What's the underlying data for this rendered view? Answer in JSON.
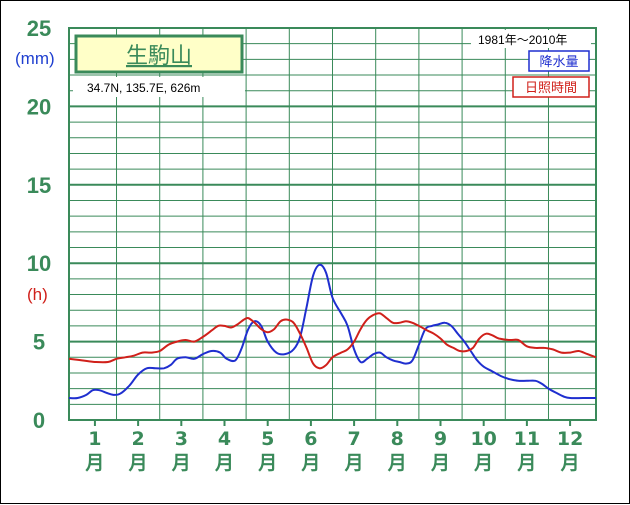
{
  "chart_data": {
    "type": "line",
    "title": "生駒山",
    "location": "34.7N, 135.7E, 626m",
    "period": "1981年～2010年",
    "legend": [
      {
        "name": "降水量",
        "color": "#1f2fcf"
      },
      {
        "name": "日照時間",
        "color": "#d0201a"
      }
    ],
    "y_units": {
      "precipitation": "(mm)",
      "sunshine": "(h)"
    },
    "y_ticks": [
      "0",
      "5",
      "10",
      "15",
      "20",
      "25"
    ],
    "ylim": [
      0,
      25
    ],
    "x_range": [
      0.4,
      12.6
    ],
    "months": [
      {
        "num": "1",
        "unit": "月"
      },
      {
        "num": "2",
        "unit": "月"
      },
      {
        "num": "3",
        "unit": "月"
      },
      {
        "num": "4",
        "unit": "月"
      },
      {
        "num": "5",
        "unit": "月"
      },
      {
        "num": "6",
        "unit": "月"
      },
      {
        "num": "7",
        "unit": "月"
      },
      {
        "num": "8",
        "unit": "月"
      },
      {
        "num": "9",
        "unit": "月"
      },
      {
        "num": "10",
        "unit": "月"
      },
      {
        "num": "11",
        "unit": "月"
      },
      {
        "num": "12",
        "unit": "月"
      }
    ],
    "series": [
      {
        "name": "降水量",
        "color": "#1f2fcf",
        "points": [
          [
            0.4,
            1.4
          ],
          [
            0.6,
            1.4
          ],
          [
            0.8,
            1.6
          ],
          [
            0.95,
            1.9
          ],
          [
            1.1,
            1.9
          ],
          [
            1.3,
            1.7
          ],
          [
            1.45,
            1.6
          ],
          [
            1.6,
            1.7
          ],
          [
            1.8,
            2.2
          ],
          [
            2.0,
            2.9
          ],
          [
            2.2,
            3.3
          ],
          [
            2.4,
            3.3
          ],
          [
            2.6,
            3.3
          ],
          [
            2.75,
            3.5
          ],
          [
            2.9,
            3.9
          ],
          [
            3.1,
            4.0
          ],
          [
            3.3,
            3.9
          ],
          [
            3.5,
            4.2
          ],
          [
            3.7,
            4.4
          ],
          [
            3.9,
            4.3
          ],
          [
            4.05,
            3.9
          ],
          [
            4.25,
            3.8
          ],
          [
            4.4,
            4.6
          ],
          [
            4.55,
            5.8
          ],
          [
            4.7,
            6.3
          ],
          [
            4.85,
            6.0
          ],
          [
            5.0,
            5.0
          ],
          [
            5.2,
            4.3
          ],
          [
            5.4,
            4.2
          ],
          [
            5.6,
            4.5
          ],
          [
            5.75,
            5.3
          ],
          [
            5.9,
            7.2
          ],
          [
            6.05,
            9.2
          ],
          [
            6.2,
            9.9
          ],
          [
            6.35,
            9.4
          ],
          [
            6.5,
            7.8
          ],
          [
            6.7,
            6.8
          ],
          [
            6.85,
            6.0
          ],
          [
            7.0,
            4.5
          ],
          [
            7.15,
            3.7
          ],
          [
            7.3,
            3.9
          ],
          [
            7.45,
            4.2
          ],
          [
            7.6,
            4.3
          ],
          [
            7.75,
            4.0
          ],
          [
            7.9,
            3.8
          ],
          [
            8.05,
            3.7
          ],
          [
            8.2,
            3.6
          ],
          [
            8.35,
            3.8
          ],
          [
            8.5,
            4.8
          ],
          [
            8.65,
            5.8
          ],
          [
            8.8,
            6.0
          ],
          [
            8.95,
            6.1
          ],
          [
            9.1,
            6.2
          ],
          [
            9.25,
            6.0
          ],
          [
            9.4,
            5.5
          ],
          [
            9.55,
            5.0
          ],
          [
            9.7,
            4.4
          ],
          [
            9.85,
            3.8
          ],
          [
            10.0,
            3.4
          ],
          [
            10.2,
            3.1
          ],
          [
            10.4,
            2.8
          ],
          [
            10.6,
            2.6
          ],
          [
            10.8,
            2.5
          ],
          [
            11.0,
            2.5
          ],
          [
            11.2,
            2.5
          ],
          [
            11.35,
            2.3
          ],
          [
            11.5,
            2.0
          ],
          [
            11.7,
            1.7
          ],
          [
            11.85,
            1.5
          ],
          [
            12.0,
            1.4
          ],
          [
            12.3,
            1.4
          ],
          [
            12.6,
            1.4
          ]
        ]
      },
      {
        "name": "日照時間",
        "color": "#d0201a",
        "points": [
          [
            0.4,
            3.9
          ],
          [
            0.7,
            3.8
          ],
          [
            1.0,
            3.7
          ],
          [
            1.3,
            3.7
          ],
          [
            1.5,
            3.9
          ],
          [
            1.7,
            4.0
          ],
          [
            1.9,
            4.1
          ],
          [
            2.1,
            4.3
          ],
          [
            2.3,
            4.3
          ],
          [
            2.5,
            4.4
          ],
          [
            2.7,
            4.8
          ],
          [
            2.9,
            5.0
          ],
          [
            3.1,
            5.1
          ],
          [
            3.3,
            5.0
          ],
          [
            3.5,
            5.3
          ],
          [
            3.7,
            5.7
          ],
          [
            3.85,
            6.0
          ],
          [
            4.0,
            6.0
          ],
          [
            4.15,
            5.9
          ],
          [
            4.3,
            6.1
          ],
          [
            4.45,
            6.4
          ],
          [
            4.55,
            6.5
          ],
          [
            4.7,
            6.2
          ],
          [
            4.85,
            5.8
          ],
          [
            5.0,
            5.6
          ],
          [
            5.15,
            5.8
          ],
          [
            5.3,
            6.3
          ],
          [
            5.45,
            6.4
          ],
          [
            5.6,
            6.2
          ],
          [
            5.75,
            5.5
          ],
          [
            5.9,
            4.6
          ],
          [
            6.05,
            3.6
          ],
          [
            6.2,
            3.3
          ],
          [
            6.35,
            3.5
          ],
          [
            6.5,
            4.0
          ],
          [
            6.7,
            4.3
          ],
          [
            6.85,
            4.5
          ],
          [
            7.0,
            5.0
          ],
          [
            7.15,
            5.8
          ],
          [
            7.3,
            6.4
          ],
          [
            7.45,
            6.7
          ],
          [
            7.6,
            6.8
          ],
          [
            7.75,
            6.5
          ],
          [
            7.9,
            6.2
          ],
          [
            8.05,
            6.2
          ],
          [
            8.2,
            6.3
          ],
          [
            8.35,
            6.2
          ],
          [
            8.5,
            6.0
          ],
          [
            8.7,
            5.7
          ],
          [
            8.85,
            5.5
          ],
          [
            9.0,
            5.2
          ],
          [
            9.15,
            4.8
          ],
          [
            9.3,
            4.6
          ],
          [
            9.45,
            4.4
          ],
          [
            9.6,
            4.4
          ],
          [
            9.75,
            4.6
          ],
          [
            9.9,
            5.2
          ],
          [
            10.05,
            5.5
          ],
          [
            10.2,
            5.4
          ],
          [
            10.35,
            5.2
          ],
          [
            10.6,
            5.1
          ],
          [
            10.8,
            5.1
          ],
          [
            11.0,
            4.7
          ],
          [
            11.2,
            4.6
          ],
          [
            11.4,
            4.6
          ],
          [
            11.6,
            4.5
          ],
          [
            11.8,
            4.3
          ],
          [
            12.0,
            4.3
          ],
          [
            12.2,
            4.4
          ],
          [
            12.4,
            4.2
          ],
          [
            12.6,
            4.0
          ]
        ]
      }
    ]
  }
}
